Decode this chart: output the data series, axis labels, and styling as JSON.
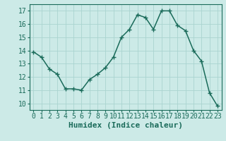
{
  "x": [
    0,
    1,
    2,
    3,
    4,
    5,
    6,
    7,
    8,
    9,
    10,
    11,
    12,
    13,
    14,
    15,
    16,
    17,
    18,
    19,
    20,
    21,
    22,
    23
  ],
  "y": [
    13.9,
    13.5,
    12.6,
    12.2,
    11.1,
    11.1,
    11.0,
    11.8,
    12.2,
    12.7,
    13.5,
    15.0,
    15.6,
    16.7,
    16.5,
    15.6,
    17.0,
    17.0,
    15.9,
    15.5,
    14.0,
    13.2,
    10.8,
    9.8
  ],
  "line_color": "#1a6b5a",
  "marker": "+",
  "markersize": 4,
  "linewidth": 1.1,
  "bg_color": "#cceae7",
  "grid_color": "#aad4d0",
  "xlabel": "Humidex (Indice chaleur)",
  "xlabel_fontsize": 8,
  "tick_fontsize": 7,
  "xlim": [
    -0.5,
    23.5
  ],
  "ylim": [
    9.5,
    17.5
  ],
  "yticks": [
    10,
    11,
    12,
    13,
    14,
    15,
    16,
    17
  ],
  "xticks": [
    0,
    1,
    2,
    3,
    4,
    5,
    6,
    7,
    8,
    9,
    10,
    11,
    12,
    13,
    14,
    15,
    16,
    17,
    18,
    19,
    20,
    21,
    22,
    23
  ],
  "spine_color": "#1a6b5a",
  "spine_linewidth": 0.8
}
